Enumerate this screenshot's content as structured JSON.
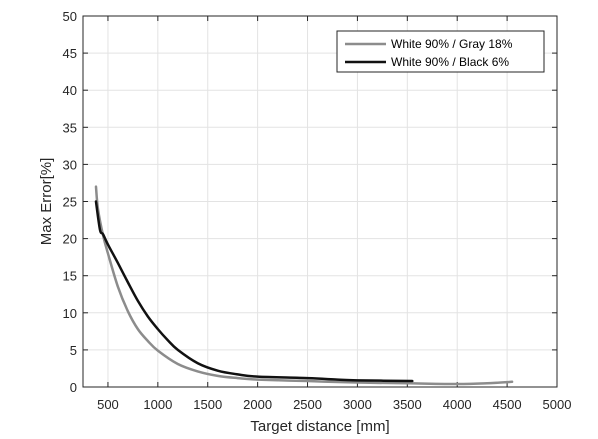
{
  "chart_data": {
    "type": "line",
    "xlabel": "Target distance [mm]",
    "ylabel": "Max Error[%]",
    "xlim": [
      250,
      5000
    ],
    "ylim": [
      0,
      50
    ],
    "x_ticks": [
      500,
      1000,
      1500,
      2000,
      2500,
      3000,
      3500,
      4000,
      4500,
      5000
    ],
    "y_ticks": [
      0,
      5,
      10,
      15,
      20,
      25,
      30,
      35,
      40,
      45,
      50
    ],
    "grid": true,
    "legend_position": "top-right",
    "series": [
      {
        "name": "White 90% / Gray 18%",
        "color": "#8c8c8c",
        "points": [
          [
            380,
            27
          ],
          [
            400,
            24
          ],
          [
            450,
            20.5
          ],
          [
            500,
            18
          ],
          [
            600,
            13.5
          ],
          [
            700,
            10.2
          ],
          [
            800,
            7.8
          ],
          [
            900,
            6.2
          ],
          [
            1000,
            4.9
          ],
          [
            1200,
            3.1
          ],
          [
            1400,
            2.1
          ],
          [
            1600,
            1.5
          ],
          [
            1800,
            1.2
          ],
          [
            2000,
            1.0
          ],
          [
            2500,
            0.8
          ],
          [
            3000,
            0.6
          ],
          [
            3500,
            0.5
          ],
          [
            4000,
            0.4
          ],
          [
            4300,
            0.5
          ],
          [
            4550,
            0.7
          ]
        ]
      },
      {
        "name": "White 90% / Black 6%",
        "color": "#111111",
        "points": [
          [
            380,
            25
          ],
          [
            420,
            21.2
          ],
          [
            450,
            20.6
          ],
          [
            500,
            19.2
          ],
          [
            600,
            16.7
          ],
          [
            700,
            14.1
          ],
          [
            800,
            11.6
          ],
          [
            900,
            9.5
          ],
          [
            1000,
            7.8
          ],
          [
            1100,
            6.3
          ],
          [
            1200,
            5.0
          ],
          [
            1400,
            3.2
          ],
          [
            1600,
            2.2
          ],
          [
            1800,
            1.7
          ],
          [
            2000,
            1.4
          ],
          [
            2500,
            1.2
          ],
          [
            2800,
            1.0
          ],
          [
            3000,
            0.9
          ],
          [
            3550,
            0.8
          ]
        ]
      }
    ]
  }
}
